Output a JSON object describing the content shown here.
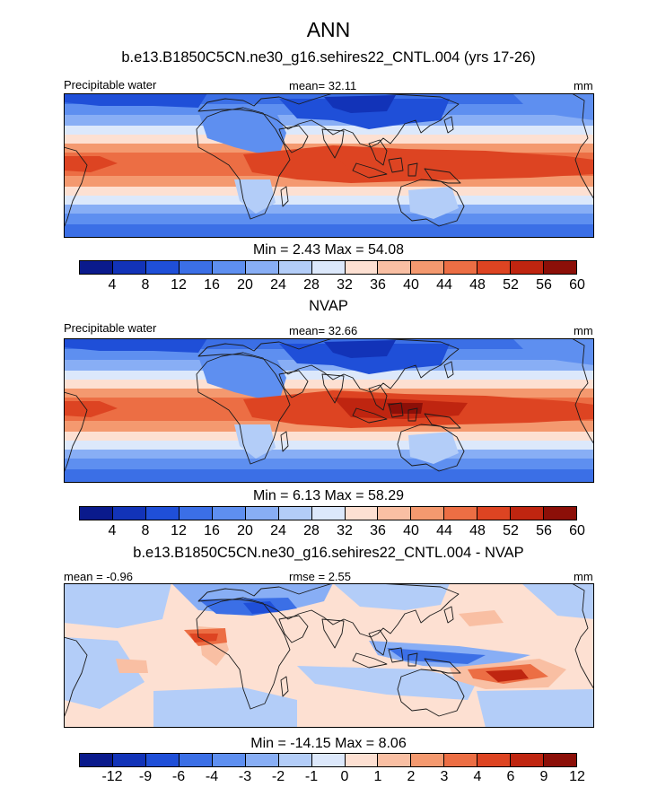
{
  "title": "ANN",
  "panels": [
    {
      "id": "model",
      "subtitle": "b.e13.B1850C5CN.ne30_g16.sehires22_CNTL.004 (yrs 17-26)",
      "left_label": "Precipitable water",
      "center_label": "mean=  32.11",
      "right_label": "mm",
      "stats_text": "Min =   2.43 Max =  54.08",
      "colorbar_ticks": [
        "4",
        "8",
        "12",
        "16",
        "20",
        "24",
        "28",
        "32",
        "36",
        "40",
        "44",
        "48",
        "52",
        "56",
        "60"
      ]
    },
    {
      "id": "obs",
      "subtitle": "NVAP",
      "left_label": "Precipitable water",
      "center_label": "mean=  32.66",
      "right_label": "mm",
      "stats_text": "Min =   6.13 Max =  58.29",
      "colorbar_ticks": [
        "4",
        "8",
        "12",
        "16",
        "20",
        "24",
        "28",
        "32",
        "36",
        "40",
        "44",
        "48",
        "52",
        "56",
        "60"
      ]
    },
    {
      "id": "diff",
      "subtitle": "b.e13.B1850C5CN.ne30_g16.sehires22_CNTL.004 - NVAP",
      "left_label": "mean =  -0.96",
      "center_label": "rmse =   2.55",
      "right_label": "mm",
      "stats_text": "Min = -14.15 Max =   8.06",
      "colorbar_ticks": [
        "-12",
        "-9",
        "-6",
        "-4",
        "-3",
        "-2",
        "-1",
        "0",
        "1",
        "2",
        "3",
        "4",
        "6",
        "9",
        "12"
      ]
    }
  ],
  "colors": {
    "palette": [
      "#0a1a8c",
      "#1233b8",
      "#1f4fd8",
      "#3b6fe6",
      "#5e8ff0",
      "#88aef5",
      "#b3cdf8",
      "#dce8fb",
      "#fde0d2",
      "#f9bfa3",
      "#f4996f",
      "#ec6e44",
      "#dd4422",
      "#bf2510",
      "#8c0f08"
    ],
    "frame": "#000000",
    "coast": "#1a1a1a"
  }
}
